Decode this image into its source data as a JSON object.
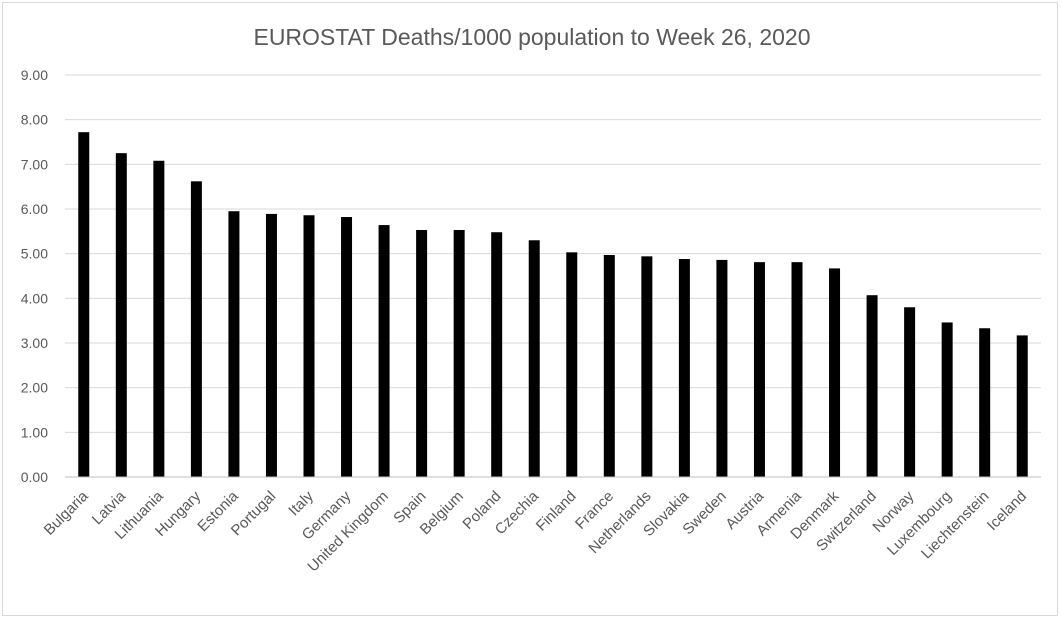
{
  "chart_data": {
    "type": "bar",
    "title": "EUROSTAT Deaths/1000 population to Week 26, 2020",
    "xlabel": "",
    "ylabel": "",
    "categories": [
      "Bulgaria",
      "Latvia",
      "Lithuania",
      "Hungary",
      "Estonia",
      "Portugal",
      "Italy",
      "Germany",
      "United Kingdom",
      "Spain",
      "Belgium",
      "Poland",
      "Czechia",
      "Finland",
      "France",
      "Netherlands",
      "Slovakia",
      "Sweden",
      "Austria",
      "Armenia",
      "Denmark",
      "Switzerland",
      "Norway",
      "Luxembourg",
      "Liechtenstein",
      "Iceland"
    ],
    "values": [
      7.72,
      7.25,
      7.08,
      6.62,
      5.95,
      5.89,
      5.86,
      5.82,
      5.64,
      5.53,
      5.53,
      5.48,
      5.3,
      5.03,
      4.97,
      4.94,
      4.88,
      4.86,
      4.81,
      4.81,
      4.67,
      4.07,
      3.8,
      3.46,
      3.33,
      3.17
    ],
    "ylim": [
      0,
      9
    ],
    "yticks": [
      "0.00",
      "1.00",
      "2.00",
      "3.00",
      "4.00",
      "5.00",
      "6.00",
      "7.00",
      "8.00",
      "9.00"
    ],
    "grid": true,
    "legend": "none",
    "bar_color": "#000000"
  }
}
